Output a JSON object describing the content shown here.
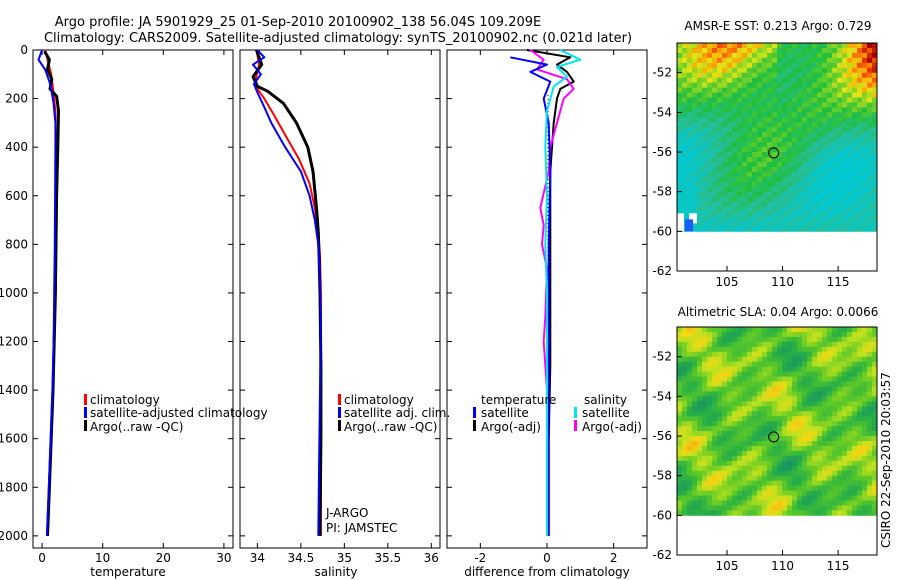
{
  "title_line1": "Argo profile: JA 5901929_25 01-Sep-2010 20100902_138 56.04S 109.209E",
  "title_line2": "Climatology: CARS2009. Satellite-adjusted climatology: synTS_20100902.nc (0.021d later)",
  "footer_stamp": "CSIRO 22-Sep-2010 20:03:57",
  "colors": {
    "climatology": "#ff0000",
    "satellite": "#0000ff",
    "argo": "#000000",
    "sat_salinity": "#00e5ee",
    "argo_salinity_adj": "#ff00ff"
  },
  "chart_data": [
    {
      "id": "temperature",
      "type": "line",
      "xlabel": "temperature",
      "ylabel": "",
      "xlim": [
        -1.5,
        31.5
      ],
      "ylim": [
        2050,
        0
      ],
      "xticks": [
        0,
        10,
        20,
        30
      ],
      "xtick_labels": [
        "0",
        "10",
        "20",
        "30"
      ],
      "yticks": [
        0,
        200,
        400,
        600,
        800,
        1000,
        1200,
        1400,
        1600,
        1800,
        2000
      ],
      "ytick_labels": [
        "0",
        "200",
        "400",
        "600",
        "800",
        "1000",
        "1200",
        "1400",
        "1600",
        "1800",
        "2000"
      ],
      "legend_items": [
        "climatology",
        "satellite-adjusted climatology",
        "Argo(..raw -QC)"
      ],
      "series": [
        {
          "name": "climatology",
          "color": "#ff0000",
          "width": 2,
          "points": [
            [
              0.5,
              0
            ],
            [
              1,
              50
            ],
            [
              1.5,
              100
            ],
            [
              1.8,
              160
            ],
            [
              2.2,
              250
            ],
            [
              2.3,
              400
            ],
            [
              2.25,
              600
            ],
            [
              2.2,
              800
            ],
            [
              2.1,
              1000
            ],
            [
              2.0,
              1200
            ],
            [
              1.8,
              1400
            ],
            [
              1.5,
              1600
            ],
            [
              1.2,
              1800
            ],
            [
              0.9,
              2000
            ]
          ]
        },
        {
          "name": "Argo",
          "color": "#000000",
          "width": 3,
          "points": [
            [
              0.4,
              5
            ],
            [
              1.2,
              40
            ],
            [
              0.9,
              80
            ],
            [
              1.6,
              120
            ],
            [
              1.3,
              160
            ],
            [
              2.4,
              190
            ],
            [
              2.7,
              250
            ],
            [
              2.6,
              400
            ],
            [
              2.4,
              600
            ],
            [
              2.3,
              800
            ],
            [
              2.2,
              1000
            ],
            [
              2.0,
              1200
            ],
            [
              1.8,
              1400
            ],
            [
              1.5,
              1600
            ],
            [
              1.2,
              1800
            ],
            [
              0.9,
              2000
            ]
          ]
        },
        {
          "name": "satellite-adjusted climatology",
          "color": "#0000ff",
          "width": 2,
          "points": [
            [
              0.0,
              0
            ],
            [
              -0.6,
              40
            ],
            [
              0.5,
              80
            ],
            [
              1.2,
              130
            ],
            [
              1.5,
              160
            ],
            [
              1.9,
              220
            ],
            [
              2.2,
              300
            ],
            [
              2.2,
              400
            ],
            [
              2.15,
              600
            ],
            [
              2.1,
              800
            ],
            [
              2.0,
              1000
            ],
            [
              1.9,
              1200
            ],
            [
              1.7,
              1400
            ],
            [
              1.4,
              1600
            ],
            [
              1.1,
              1800
            ],
            [
              0.8,
              2000
            ]
          ]
        }
      ]
    },
    {
      "id": "salinity",
      "type": "line",
      "xlabel": "salinity",
      "ylabel": "",
      "xlim": [
        33.8,
        36.1
      ],
      "ylim": [
        2050,
        0
      ],
      "xticks": [
        34,
        34.5,
        35,
        35.5,
        36
      ],
      "xtick_labels": [
        "34",
        "34.5",
        "35",
        "35.5",
        "36"
      ],
      "legend_items": [
        "climatology",
        "satellite adj. clim.",
        "Argo(..raw -QC)"
      ],
      "annotations": [
        "J-ARGO",
        "PI: JAMSTEC"
      ],
      "series": [
        {
          "name": "climatology",
          "color": "#ff0000",
          "width": 2,
          "points": [
            [
              33.99,
              0
            ],
            [
              34.02,
              60
            ],
            [
              33.98,
              120
            ],
            [
              34.0,
              160
            ],
            [
              34.08,
              200
            ],
            [
              34.18,
              260
            ],
            [
              34.32,
              350
            ],
            [
              34.48,
              450
            ],
            [
              34.6,
              550
            ],
            [
              34.66,
              650
            ],
            [
              34.7,
              750
            ],
            [
              34.72,
              850
            ],
            [
              34.73,
              1000
            ],
            [
              34.73,
              1300
            ],
            [
              34.73,
              1600
            ],
            [
              34.73,
              2000
            ]
          ]
        },
        {
          "name": "Argo",
          "color": "#000000",
          "width": 3,
          "points": [
            [
              33.99,
              0
            ],
            [
              34.05,
              60
            ],
            [
              33.95,
              110
            ],
            [
              34.0,
              150
            ],
            [
              34.12,
              170
            ],
            [
              34.3,
              220
            ],
            [
              34.45,
              300
            ],
            [
              34.58,
              400
            ],
            [
              34.64,
              500
            ],
            [
              34.68,
              650
            ],
            [
              34.7,
              750
            ],
            [
              34.71,
              850
            ],
            [
              34.72,
              1000
            ],
            [
              34.73,
              1300
            ],
            [
              34.73,
              1600
            ],
            [
              34.72,
              2000
            ]
          ]
        },
        {
          "name": "satellite adj. clim.",
          "color": "#0000ff",
          "width": 2,
          "points": [
            [
              34.0,
              0
            ],
            [
              34.08,
              30
            ],
            [
              33.95,
              60
            ],
            [
              34.04,
              100
            ],
            [
              33.96,
              140
            ],
            [
              34.0,
              175
            ],
            [
              34.06,
              220
            ],
            [
              34.16,
              300
            ],
            [
              34.32,
              400
            ],
            [
              34.5,
              500
            ],
            [
              34.6,
              600
            ],
            [
              34.66,
              700
            ],
            [
              34.7,
              800
            ],
            [
              34.72,
              950
            ],
            [
              34.73,
              1100
            ],
            [
              34.72,
              1400
            ],
            [
              34.71,
              1700
            ],
            [
              34.7,
              2000
            ]
          ]
        }
      ]
    },
    {
      "id": "difference",
      "type": "line",
      "xlabel": "difference from climatology",
      "ylabel": "",
      "xlim": [
        -3.0,
        3.0
      ],
      "ylim": [
        2050,
        0
      ],
      "xticks": [
        -2,
        0,
        2
      ],
      "xtick_labels": [
        "-2",
        "0",
        "2"
      ],
      "legend_headers": [
        "temperature",
        "salinity"
      ],
      "legend_items": [
        "satellite",
        "Argo(-adj)",
        "satellite",
        "Argo(-adj)"
      ],
      "series": [
        {
          "name": "temperature Argo(-adj)",
          "color": "#000000",
          "width": 2,
          "points": [
            [
              -0.6,
              0
            ],
            [
              0.7,
              30
            ],
            [
              0.3,
              60
            ],
            [
              0.6,
              90
            ],
            [
              0.8,
              130
            ],
            [
              0.4,
              160
            ],
            [
              0.3,
              200
            ],
            [
              0.2,
              300
            ],
            [
              0.15,
              400
            ],
            [
              0.1,
              500
            ],
            [
              0.1,
              700
            ],
            [
              0.1,
              1000
            ],
            [
              0.1,
              1300
            ],
            [
              0.05,
              1600
            ],
            [
              0.05,
              2000
            ]
          ]
        },
        {
          "name": "salinity Argo(-adj)",
          "color": "#ff00ff",
          "width": 2,
          "points": [
            [
              -0.5,
              0
            ],
            [
              -0.1,
              40
            ],
            [
              -0.3,
              80
            ],
            [
              0.6,
              120
            ],
            [
              0.8,
              160
            ],
            [
              0.5,
              200
            ],
            [
              0.3,
              300
            ],
            [
              0.1,
              400
            ],
            [
              0.05,
              500
            ],
            [
              -0.2,
              650
            ],
            [
              -0.1,
              720
            ],
            [
              -0.15,
              800
            ],
            [
              0.0,
              900
            ],
            [
              -0.05,
              1100
            ],
            [
              -0.1,
              1200
            ],
            [
              0.0,
              1400
            ],
            [
              0.0,
              1600
            ],
            [
              0.0,
              2000
            ]
          ]
        },
        {
          "name": "temperature satellite",
          "color": "#0000ff",
          "width": 2,
          "points": [
            [
              -1.1,
              30
            ],
            [
              0.0,
              60
            ],
            [
              -0.5,
              90
            ],
            [
              0.1,
              130
            ],
            [
              -0.1,
              200
            ],
            [
              0.05,
              300
            ],
            [
              0.1,
              500
            ],
            [
              0.05,
              800
            ],
            [
              0.05,
              1100
            ],
            [
              0.05,
              1400
            ],
            [
              0.05,
              1700
            ],
            [
              0.05,
              2000
            ]
          ]
        },
        {
          "name": "salinity satellite",
          "color": "#00e5ee",
          "width": 2,
          "points": [
            [
              0.4,
              0
            ],
            [
              1.0,
              40
            ],
            [
              0.3,
              70
            ],
            [
              0.6,
              110
            ],
            [
              0.2,
              150
            ],
            [
              0.0,
              250
            ],
            [
              -0.05,
              400
            ],
            [
              0.0,
              600
            ],
            [
              -0.05,
              800
            ],
            [
              0.0,
              1000
            ],
            [
              0.0,
              1400
            ],
            [
              0.0,
              1800
            ],
            [
              0.0,
              2000
            ]
          ]
        }
      ]
    },
    {
      "id": "sst_map",
      "type": "heatmap",
      "title": "AMSR-E SST: 0.213 Argo: 0.729",
      "xlim": [
        100.5,
        118.5
      ],
      "ylim": [
        -62,
        -50.5
      ],
      "data_ylim_bottom": -60,
      "xticks": [
        105,
        110,
        115
      ],
      "xtick_labels": [
        "105",
        "110",
        "115"
      ],
      "yticks": [
        -52,
        -54,
        -56,
        -58,
        -60,
        -62
      ],
      "ytick_labels": [
        "-52",
        "-54",
        "-56",
        "-58",
        "-60",
        "-62"
      ],
      "marker": {
        "lon": 109.2,
        "lat": -56.04
      }
    },
    {
      "id": "sla_map",
      "type": "heatmap",
      "title": "Altimetric SLA: 0.04 Argo: 0.0066",
      "xlim": [
        100.5,
        118.5
      ],
      "ylim": [
        -62,
        -50.5
      ],
      "data_ylim_bottom": -60,
      "xticks": [
        105,
        110,
        115
      ],
      "xtick_labels": [
        "105",
        "110",
        "115"
      ],
      "yticks": [
        -52,
        -54,
        -56,
        -58,
        -60,
        -62
      ],
      "ytick_labels": [
        "-52",
        "-54",
        "-56",
        "-58",
        "-60",
        "-62"
      ],
      "marker": {
        "lon": 109.2,
        "lat": -56.04
      }
    }
  ]
}
